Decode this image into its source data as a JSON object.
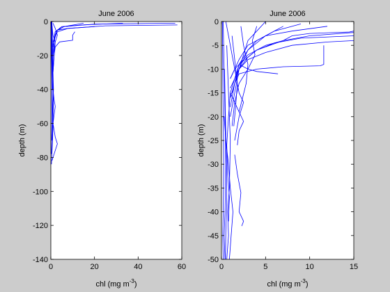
{
  "figure": {
    "background": "#cccccc",
    "axes_background": "#ffffff",
    "line_color": "#0000ff"
  },
  "chart_data": [
    {
      "type": "line",
      "title": "June 2006",
      "xlabel": "chl (mg m",
      "xlabel_exp": "-3",
      "xlabel_end": ")",
      "ylabel": "depth (m)",
      "xlim": [
        0,
        60
      ],
      "ylim": [
        -140,
        0
      ],
      "xticks": [
        "0",
        "20",
        "40",
        "60"
      ],
      "yticks": [
        "0",
        "-20",
        "-40",
        "-60",
        "-80",
        "-100",
        "-120",
        "-140"
      ],
      "series": [
        {
          "x": [
            33,
            14,
            6,
            3,
            2,
            1.5,
            1,
            1,
            0.8
          ],
          "y": [
            -1,
            -2,
            -3,
            -5,
            -8,
            -12,
            -20,
            -30,
            -40
          ]
        },
        {
          "x": [
            57,
            20,
            5,
            2,
            1.5,
            1
          ],
          "y": [
            -1,
            -1.5,
            -3,
            -6,
            -10,
            -15
          ]
        },
        {
          "x": [
            58,
            25,
            8,
            3,
            2,
            1
          ],
          "y": [
            -2,
            -2.5,
            -4,
            -6,
            -9,
            -14
          ]
        },
        {
          "x": [
            11,
            10,
            10,
            4,
            2,
            1.5,
            1
          ],
          "y": [
            -6,
            -8,
            -11,
            -12,
            -15,
            -20,
            -30
          ]
        },
        {
          "x": [
            20,
            8,
            3,
            2,
            1
          ],
          "y": [
            -3,
            -4,
            -5,
            -8,
            -12
          ]
        },
        {
          "x": [
            15,
            6,
            2,
            1.5,
            1,
            1
          ],
          "y": [
            -1,
            -3,
            -6,
            -10,
            -20,
            -35
          ]
        },
        {
          "x": [
            0.5,
            0.7,
            0.9,
            1.0,
            1.2,
            1.0,
            0.8,
            0.6
          ],
          "y": [
            0,
            -10,
            -20,
            -30,
            -40,
            -50,
            -60,
            -70
          ]
        },
        {
          "x": [
            0.4,
            0.6,
            0.8,
            1.0,
            1.5,
            2.0,
            1.0,
            0.6
          ],
          "y": [
            0,
            -20,
            -30,
            -40,
            -46,
            -50,
            -60,
            -70
          ]
        },
        {
          "x": [
            0.2,
            0.4,
            0.6,
            0.8,
            1.0,
            0.8,
            0.5,
            0.3
          ],
          "y": [
            0,
            -20,
            -40,
            -55,
            -62,
            -70,
            -78,
            -84
          ]
        },
        {
          "x": [
            0.3,
            0.8,
            1.2,
            1.0,
            2.0,
            3.0,
            1.5,
            0.5
          ],
          "y": [
            -10,
            -30,
            -45,
            -60,
            -68,
            -72,
            -78,
            -82
          ]
        },
        {
          "x": [
            0.5,
            1,
            2,
            1.5,
            1
          ],
          "y": [
            -2,
            -8,
            -12,
            -20,
            -30
          ]
        },
        {
          "x": [
            1,
            2,
            3,
            2,
            1,
            1
          ],
          "y": [
            -1,
            -4,
            -8,
            -12,
            -20,
            -25
          ]
        },
        {
          "x": [
            0.2,
            0.3,
            0.5,
            0.4,
            0.3
          ],
          "y": [
            0,
            -20,
            -40,
            -60,
            -78
          ]
        }
      ]
    },
    {
      "type": "line",
      "title": "June 2006",
      "xlabel": "chl (mg m",
      "xlabel_exp": "-3",
      "xlabel_end": ")",
      "ylabel": "depth (m)",
      "xlim": [
        0,
        15
      ],
      "ylim": [
        -50,
        0
      ],
      "xticks": [
        "0",
        "5",
        "10",
        "15"
      ],
      "yticks": [
        "0",
        "-5",
        "-10",
        "-15",
        "-20",
        "-25",
        "-30",
        "-35",
        "-40",
        "-45",
        "-50"
      ],
      "series": [
        {
          "x": [
            15,
            10,
            7,
            5,
            3,
            2,
            1.5,
            1,
            0.8
          ],
          "y": [
            -2.3,
            -3,
            -4,
            -5,
            -7,
            -9,
            -12,
            -15,
            -20
          ]
        },
        {
          "x": [
            15,
            9,
            6,
            4,
            3,
            2,
            1
          ],
          "y": [
            -3,
            -3.5,
            -4.5,
            -6,
            -7.5,
            -10,
            -14
          ]
        },
        {
          "x": [
            15,
            12,
            8,
            5,
            3,
            2
          ],
          "y": [
            -4,
            -4.3,
            -5,
            -6.5,
            -8,
            -10
          ]
        },
        {
          "x": [
            11.6,
            11.6,
            11.2,
            7,
            4,
            3,
            2,
            1.5,
            1
          ],
          "y": [
            -5,
            -9,
            -9.3,
            -9.5,
            -10,
            -10.5,
            -11,
            -13,
            -16
          ]
        },
        {
          "x": [
            15,
            14.5,
            10,
            8,
            7,
            4,
            2
          ],
          "y": [
            -2,
            -2.2,
            -2.5,
            -3,
            -4,
            -6,
            -9
          ]
        },
        {
          "x": [
            6.4,
            4,
            3,
            2,
            1.5,
            1
          ],
          "y": [
            -11,
            -10.5,
            -10,
            -9,
            -10,
            -12
          ]
        },
        {
          "x": [
            12,
            8,
            5,
            3,
            2,
            1
          ],
          "y": [
            -1,
            -2,
            -3,
            -5,
            -8,
            -12
          ]
        },
        {
          "x": [
            9,
            6,
            4,
            3,
            2,
            1.2
          ],
          "y": [
            -0.5,
            -2,
            -4,
            -6,
            -10,
            -15
          ]
        },
        {
          "x": [
            7,
            5,
            3,
            2,
            1.5,
            1
          ],
          "y": [
            -1,
            -3,
            -6,
            -9,
            -13,
            -18
          ]
        },
        {
          "x": [
            5,
            4,
            3,
            2.5,
            2,
            1.5,
            1
          ],
          "y": [
            0,
            -2,
            -4,
            -7,
            -10,
            -15,
            -20
          ]
        },
        {
          "x": [
            4,
            3.5,
            3.8,
            3,
            2,
            1.5,
            1.2
          ],
          "y": [
            -1,
            -4,
            -7,
            -10,
            -13,
            -17,
            -22
          ]
        },
        {
          "x": [
            1,
            1.5,
            2,
            2.5,
            2,
            1.8
          ],
          "y": [
            -15,
            -17,
            -19,
            -21,
            -23,
            -26
          ]
        },
        {
          "x": [
            0.5,
            1,
            1.5,
            2,
            2.5,
            2,
            1.5
          ],
          "y": [
            0,
            -5,
            -10,
            -15,
            -17,
            -20,
            -25
          ]
        },
        {
          "x": [
            1.5,
            1.8,
            2.2,
            2.0,
            2.5,
            2.3
          ],
          "y": [
            -28,
            -32,
            -36,
            -40,
            -42,
            -43
          ]
        },
        {
          "x": [
            0.3,
            0.5,
            0.8,
            1.0,
            1.3,
            1.1,
            0.9
          ],
          "y": [
            -20,
            -25,
            -30,
            -35,
            -40,
            -45,
            -50
          ]
        },
        {
          "x": [
            0.2,
            0.3,
            0.4,
            0.5,
            0.4,
            0.3,
            0.4
          ],
          "y": [
            0,
            -10,
            -20,
            -30,
            -40,
            -45,
            -50
          ]
        },
        {
          "x": [
            0.1,
            0.15,
            0.2,
            0.25,
            0.2,
            0.15,
            0.2
          ],
          "y": [
            0,
            -10,
            -20,
            -30,
            -40,
            -45,
            -50
          ]
        },
        {
          "x": [
            0.6,
            0.8,
            1.0,
            0.9,
            0.7,
            0.8,
            0.6
          ],
          "y": [
            -5,
            -15,
            -25,
            -35,
            -40,
            -45,
            -50
          ]
        },
        {
          "x": [
            0.35,
            0.45,
            0.55,
            0.6,
            0.5,
            0.45
          ],
          "y": [
            -10,
            -20,
            -30,
            -38,
            -44,
            -50
          ]
        },
        {
          "x": [
            1.2,
            1.5,
            1.8,
            1.6,
            1.4
          ],
          "y": [
            -3,
            -8,
            -13,
            -18,
            -22
          ]
        },
        {
          "x": [
            2.2,
            2.5,
            3.0,
            2.8,
            2.4,
            2.0
          ],
          "y": [
            -1,
            -5,
            -9,
            -13,
            -16,
            -19
          ]
        },
        {
          "x": [
            0.8,
            0.6,
            0.7,
            0.9,
            0.8
          ],
          "y": [
            -20,
            -26,
            -32,
            -37,
            -42
          ]
        }
      ]
    }
  ]
}
